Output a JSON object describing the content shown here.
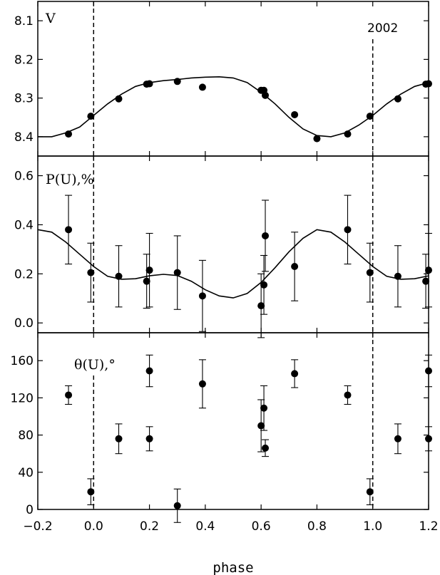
{
  "chart_data": [
    {
      "type": "scatter",
      "panel": "V",
      "label": "V",
      "annotation": "2002",
      "ylim": [
        8.45,
        8.05
      ],
      "yticks": [
        8.1,
        8.2,
        8.3,
        8.4
      ],
      "ytick_labels": [
        "8.1",
        "8.2",
        "8.3",
        "8.4"
      ],
      "points": [
        {
          "x": -0.09,
          "y": 8.393
        },
        {
          "x": -0.01,
          "y": 8.347
        },
        {
          "x": 0.09,
          "y": 8.302
        },
        {
          "x": 0.19,
          "y": 8.264
        },
        {
          "x": 0.2,
          "y": 8.263
        },
        {
          "x": 0.3,
          "y": 8.257
        },
        {
          "x": 0.39,
          "y": 8.272
        },
        {
          "x": 0.6,
          "y": 8.28
        },
        {
          "x": 0.61,
          "y": 8.28
        },
        {
          "x": 0.615,
          "y": 8.293
        },
        {
          "x": 0.72,
          "y": 8.343
        },
        {
          "x": 0.8,
          "y": 8.405
        },
        {
          "x": 0.91,
          "y": 8.393
        },
        {
          "x": 0.99,
          "y": 8.347
        },
        {
          "x": 1.09,
          "y": 8.302
        },
        {
          "x": 1.19,
          "y": 8.264
        },
        {
          "x": 1.2,
          "y": 8.263
        }
      ],
      "model": {
        "x": [
          -0.2,
          -0.15,
          -0.1,
          -0.05,
          0.0,
          0.05,
          0.1,
          0.15,
          0.2,
          0.25,
          0.3,
          0.35,
          0.4,
          0.45,
          0.5,
          0.55,
          0.6,
          0.65,
          0.7,
          0.75,
          0.8,
          0.85,
          0.9,
          0.95,
          1.0,
          1.05,
          1.1,
          1.15,
          1.2
        ],
        "y": [
          8.4,
          8.4,
          8.39,
          8.375,
          8.345,
          8.315,
          8.29,
          8.27,
          8.26,
          8.255,
          8.252,
          8.248,
          8.246,
          8.245,
          8.248,
          8.26,
          8.285,
          8.315,
          8.35,
          8.38,
          8.397,
          8.4,
          8.39,
          8.37,
          8.345,
          8.315,
          8.29,
          8.27,
          8.26
        ]
      }
    },
    {
      "type": "scatter",
      "panel": "P(U)",
      "label": "P(U),%",
      "ylim": [
        -0.04,
        0.68
      ],
      "yticks": [
        0.0,
        0.2,
        0.4,
        0.6
      ],
      "ytick_labels": [
        "0.0",
        "0.2",
        "0.4",
        "0.6"
      ],
      "points": [
        {
          "x": -0.09,
          "y": 0.38,
          "err": 0.14
        },
        {
          "x": -0.01,
          "y": 0.205,
          "err": 0.12
        },
        {
          "x": 0.09,
          "y": 0.19,
          "err": 0.125
        },
        {
          "x": 0.19,
          "y": 0.17,
          "err": 0.11
        },
        {
          "x": 0.2,
          "y": 0.215,
          "err": 0.15
        },
        {
          "x": 0.3,
          "y": 0.205,
          "err": 0.15
        },
        {
          "x": 0.39,
          "y": 0.11,
          "err": 0.145
        },
        {
          "x": 0.6,
          "y": 0.07,
          "err": 0.13
        },
        {
          "x": 0.61,
          "y": 0.155,
          "err": 0.12
        },
        {
          "x": 0.615,
          "y": 0.355,
          "err": 0.145
        },
        {
          "x": 0.72,
          "y": 0.23,
          "err": 0.14
        },
        {
          "x": 0.91,
          "y": 0.38,
          "err": 0.14
        },
        {
          "x": 0.99,
          "y": 0.205,
          "err": 0.12
        },
        {
          "x": 1.09,
          "y": 0.19,
          "err": 0.125
        },
        {
          "x": 1.19,
          "y": 0.17,
          "err": 0.11
        },
        {
          "x": 1.2,
          "y": 0.215,
          "err": 0.15
        }
      ],
      "model": {
        "x": [
          -0.2,
          -0.15,
          -0.1,
          -0.05,
          0.0,
          0.05,
          0.1,
          0.15,
          0.2,
          0.25,
          0.3,
          0.35,
          0.4,
          0.45,
          0.5,
          0.55,
          0.6,
          0.65,
          0.7,
          0.75,
          0.8,
          0.85,
          0.9,
          0.95,
          1.0,
          1.05,
          1.1,
          1.15,
          1.2
        ],
        "y": [
          0.38,
          0.37,
          0.33,
          0.28,
          0.23,
          0.19,
          0.178,
          0.18,
          0.192,
          0.198,
          0.193,
          0.17,
          0.135,
          0.11,
          0.102,
          0.12,
          0.165,
          0.225,
          0.29,
          0.345,
          0.38,
          0.37,
          0.33,
          0.28,
          0.23,
          0.19,
          0.178,
          0.18,
          0.192
        ]
      }
    },
    {
      "type": "scatter",
      "panel": "theta(U)",
      "label": "θ(U),°",
      "ylim": [
        0,
        190
      ],
      "yticks": [
        0,
        40,
        80,
        120,
        160
      ],
      "ytick_labels": [
        "0",
        "40",
        "80",
        "120",
        "160"
      ],
      "points": [
        {
          "x": -0.09,
          "y": 123,
          "err": 10
        },
        {
          "x": -0.01,
          "y": 19,
          "err": 14
        },
        {
          "x": 0.09,
          "y": 76,
          "err": 16
        },
        {
          "x": 0.2,
          "y": 149,
          "err": 17
        },
        {
          "x": 0.2,
          "y": 76,
          "err": 13
        },
        {
          "x": 0.3,
          "y": 4,
          "err": 18
        },
        {
          "x": 0.39,
          "y": 135,
          "err": 26
        },
        {
          "x": 0.6,
          "y": 90,
          "err": 28
        },
        {
          "x": 0.61,
          "y": 109,
          "err": 24
        },
        {
          "x": 0.615,
          "y": 66,
          "err": 9
        },
        {
          "x": 0.72,
          "y": 146,
          "err": 15
        },
        {
          "x": 0.91,
          "y": 123,
          "err": 10
        },
        {
          "x": 0.99,
          "y": 19,
          "err": 14
        },
        {
          "x": 1.09,
          "y": 76,
          "err": 16
        },
        {
          "x": 1.2,
          "y": 149,
          "err": 17
        },
        {
          "x": 1.2,
          "y": 76,
          "err": 13
        }
      ]
    }
  ],
  "xaxis": {
    "label": "phase",
    "xlim": [
      -0.2,
      1.2
    ],
    "ticks": [
      -0.2,
      0.0,
      0.2,
      0.4,
      0.6,
      0.8,
      1.0,
      1.2
    ],
    "tick_labels": [
      "−0.2",
      "0.0",
      "0.2",
      "0.4",
      "0.6",
      "0.8",
      "1.0",
      "1.2"
    ],
    "dashed_lines": [
      0.0,
      1.0
    ]
  }
}
